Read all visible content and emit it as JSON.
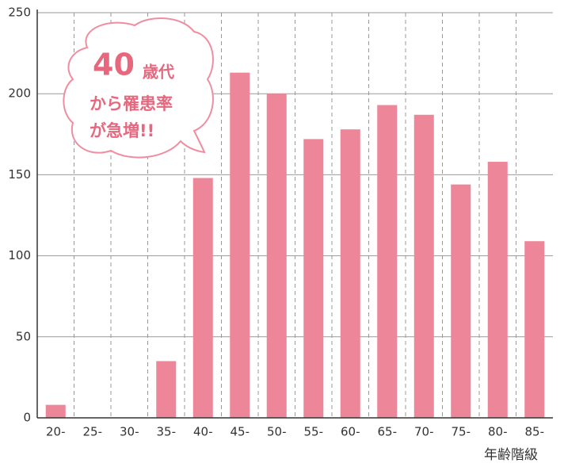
{
  "chart_data": {
    "type": "bar",
    "categories": [
      "20-",
      "25-",
      "30-",
      "35-",
      "40-",
      "45-",
      "50-",
      "55-",
      "60-",
      "65-",
      "70-",
      "75-",
      "80-",
      "85-"
    ],
    "values": [
      8,
      0,
      0,
      35,
      148,
      213,
      200,
      172,
      178,
      193,
      187,
      144,
      158,
      109
    ],
    "color": "#ec8698",
    "ylim": [
      0,
      250
    ],
    "yticks": [
      0,
      50,
      100,
      150,
      200,
      250
    ],
    "grid": true,
    "x_label": "年齢階級",
    "annotation": [
      "40",
      "歳代",
      "から罹患率",
      "が急増!!"
    ]
  }
}
